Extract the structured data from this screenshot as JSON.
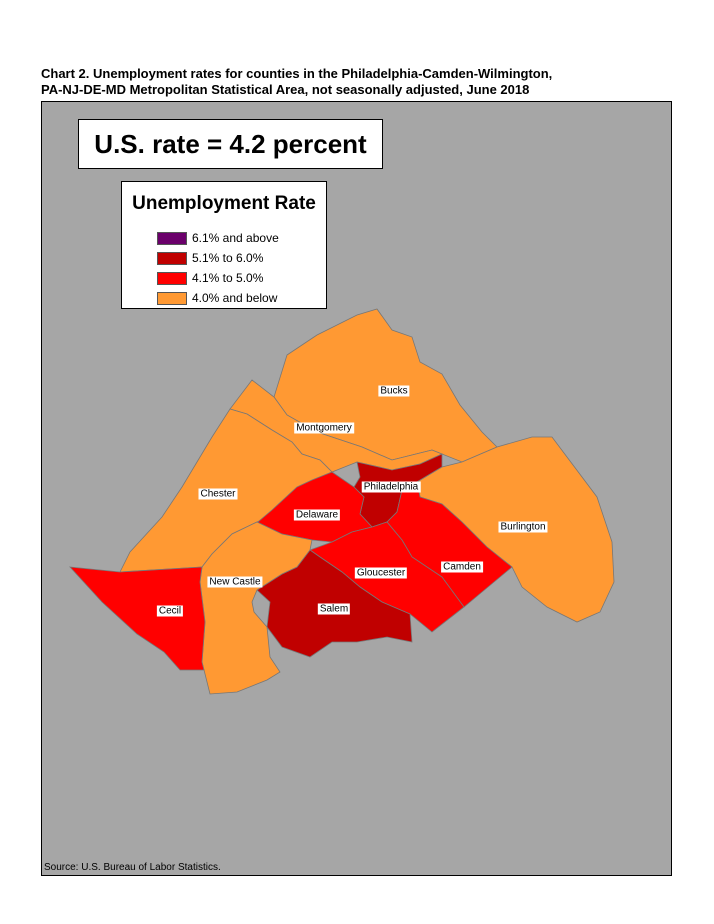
{
  "title_line1": "Chart 2. Unemployment rates for counties in the Philadelphia-Camden-Wilmington,",
  "title_line2": "PA-NJ-DE-MD Metropolitan Statistical Area, not seasonally adjusted, June 2018",
  "us_rate": "U.S. rate = 4.2 percent",
  "legend": {
    "title": "Unemployment Rate",
    "items": [
      {
        "label": "6.1% and above",
        "color": "#6b006b"
      },
      {
        "label": "5.1% to 6.0%",
        "color": "#c00000"
      },
      {
        "label": "4.1% to 5.0%",
        "color": "#ff0000"
      },
      {
        "label": "4.0% and below",
        "color": "#ff9933"
      }
    ]
  },
  "counties": [
    {
      "name": "Bucks",
      "category": "4.0% and below",
      "color": "#ff9933"
    },
    {
      "name": "Montgomery",
      "category": "4.0% and below",
      "color": "#ff9933"
    },
    {
      "name": "Chester",
      "category": "4.0% and below",
      "color": "#ff9933"
    },
    {
      "name": "Philadelphia",
      "category": "5.1% to 6.0%",
      "color": "#c00000"
    },
    {
      "name": "Delaware",
      "category": "4.1% to 5.0%",
      "color": "#ff0000"
    },
    {
      "name": "Burlington",
      "category": "4.0% and below",
      "color": "#ff9933"
    },
    {
      "name": "Camden",
      "category": "4.1% to 5.0%",
      "color": "#ff0000"
    },
    {
      "name": "Gloucester",
      "category": "4.1% to 5.0%",
      "color": "#ff0000"
    },
    {
      "name": "Salem",
      "category": "5.1% to 6.0%",
      "color": "#c00000"
    },
    {
      "name": "New Castle",
      "category": "4.0% and below",
      "color": "#ff9933"
    },
    {
      "name": "Cecil",
      "category": "4.1% to 5.0%",
      "color": "#ff0000"
    }
  ],
  "source": "Source: U.S. Bureau of Labor Statistics."
}
